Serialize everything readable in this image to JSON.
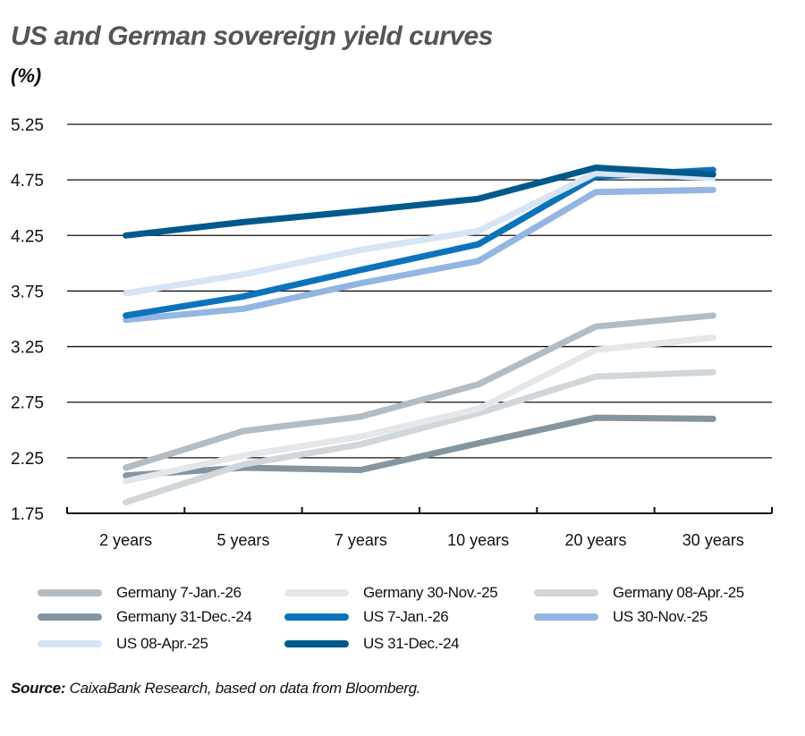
{
  "header": {
    "title": "US and German sovereign yield curves",
    "unit": "(%)"
  },
  "footer": {
    "source_label": "Source:",
    "source_text": " CaixaBank Research, based on data from Bloomberg."
  },
  "chart_data": {
    "type": "line",
    "title": "US and German sovereign yield curves",
    "xlabel": "",
    "ylabel": "(%)",
    "categories": [
      "2 years",
      "5 years",
      "7 years",
      "10 years",
      "20 years",
      "30 years"
    ],
    "yticks": [
      1.75,
      2.25,
      2.75,
      3.25,
      3.75,
      4.25,
      4.75,
      5.25
    ],
    "ylim": [
      1.75,
      5.25
    ],
    "grid": true,
    "legend_position": "bottom",
    "series": [
      {
        "name": "Germany 7-Jan.-26",
        "color": "#b3bcc2",
        "values": [
          2.16,
          2.49,
          2.62,
          2.91,
          3.43,
          3.53
        ]
      },
      {
        "name": "Germany 30-Nov.-25",
        "color": "#e3e7ea",
        "values": [
          2.04,
          2.27,
          2.44,
          2.69,
          3.22,
          3.33
        ]
      },
      {
        "name": "Germany 08-Apr.-25",
        "color": "#d0d6d9",
        "values": [
          1.85,
          2.19,
          2.37,
          2.65,
          2.98,
          3.02
        ]
      },
      {
        "name": "Germany 31-Dec.-24",
        "color": "#85959f",
        "values": [
          2.09,
          2.16,
          2.14,
          2.38,
          2.61,
          2.6
        ]
      },
      {
        "name": "US 7-Jan.-26",
        "color": "#0c73bb",
        "values": [
          3.53,
          3.7,
          3.94,
          4.17,
          4.78,
          4.84
        ]
      },
      {
        "name": "US 30-Nov.-25",
        "color": "#93b5e1",
        "values": [
          3.49,
          3.59,
          3.82,
          4.02,
          4.64,
          4.66
        ]
      },
      {
        "name": "US 08-Apr.-25",
        "color": "#d6e4f4",
        "values": [
          3.73,
          3.9,
          4.12,
          4.29,
          4.81,
          4.77
        ]
      },
      {
        "name": "US 31-Dec.-24",
        "color": "#00598b",
        "values": [
          4.25,
          4.37,
          4.47,
          4.58,
          4.86,
          4.8
        ]
      }
    ]
  },
  "legend": {
    "items": [
      {
        "label": "Germany 7-Jan.-26",
        "color": "#b3bcc2"
      },
      {
        "label": "Germany 30-Nov.-25",
        "color": "#e3e7ea"
      },
      {
        "label": "Germany 08-Apr.-25",
        "color": "#d0d6d9"
      },
      {
        "label": "Germany 31-Dec.-24",
        "color": "#85959f"
      },
      {
        "label": "US 7-Jan.-26",
        "color": "#0c73bb"
      },
      {
        "label": "US 30-Nov.-25",
        "color": "#93b5e1"
      },
      {
        "label": "US 08-Apr.-25",
        "color": "#d6e4f4"
      },
      {
        "label": "US 31-Dec.-24",
        "color": "#00598b"
      }
    ]
  }
}
